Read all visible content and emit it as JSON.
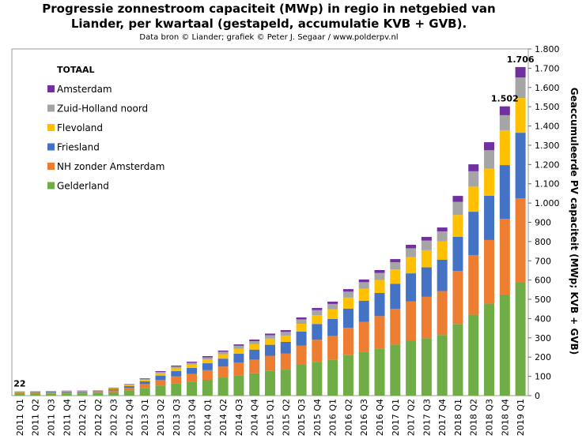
{
  "chart_data": {
    "type": "bar",
    "stacked": true,
    "title": [
      "Progressie zonnestroom capaciteit (MWp) in regio in netgebied van",
      "Liander, per kwartaal (gestapeld, accumulatie  KVB + GVB)."
    ],
    "subtitle": "Data bron © Liander; grafiek © Peter J. Segaar / www.polderpv.nl",
    "y_axis_label": "Geaccumuleerde  PV  capaciteit (MWp; KVB + GVB)",
    "legend_title": "TOTAAL",
    "categories": [
      "2011 Q1",
      "2011 Q2",
      "2011 Q3",
      "2011 Q4",
      "2012 Q1",
      "2012 Q2",
      "2012 Q3",
      "2012 Q4",
      "2013 Q1",
      "2013 Q2",
      "2013 Q3",
      "2013 Q4",
      "2014 Q1",
      "2014 Q2",
      "2014 Q3",
      "2014 Q4",
      "2015 Q1",
      "2015 Q2",
      "2015 Q3",
      "2015 Q4",
      "2016 Q1",
      "2016 Q2",
      "2016 Q3",
      "2016 Q4",
      "2017 Q1",
      "2017 Q2",
      "2017 Q3",
      "2017 Q4",
      "2018 Q1",
      "2018 Q2",
      "2018 Q3",
      "2018 Q4",
      "2019 Q1"
    ],
    "series": [
      {
        "name": "Gelderland",
        "color": "#70ad47",
        "values": [
          10,
          10,
          11,
          12,
          12,
          13,
          18,
          27,
          40,
          52,
          62,
          70,
          82,
          94,
          106,
          116,
          128,
          135,
          160,
          175,
          185,
          210,
          228,
          245,
          265,
          285,
          298,
          315,
          372,
          420,
          478,
          525,
          590
        ]
      },
      {
        "name": "NH zonder Amsterdam",
        "color": "#ed7d31",
        "values": [
          5,
          5,
          5,
          6,
          6,
          6,
          9,
          13,
          20,
          30,
          38,
          43,
          50,
          57,
          65,
          71,
          79,
          83,
          100,
          115,
          125,
          142,
          155,
          168,
          185,
          205,
          215,
          228,
          275,
          310,
          330,
          393,
          435
        ]
      },
      {
        "name": "Friesland",
        "color": "#4472c4",
        "values": [
          3,
          4,
          4,
          4,
          4,
          4,
          6,
          9,
          14,
          22,
          27,
          31,
          36,
          41,
          47,
          52,
          57,
          61,
          73,
          82,
          88,
          100,
          110,
          120,
          131,
          145,
          153,
          163,
          178,
          225,
          230,
          279,
          340
        ]
      },
      {
        "name": "Flevoland",
        "color": "#ffc000",
        "values": [
          2,
          2,
          2,
          2,
          3,
          3,
          4,
          6,
          8,
          12,
          15,
          17,
          20,
          23,
          26,
          28,
          32,
          33,
          40,
          46,
          50,
          57,
          62,
          68,
          74,
          84,
          89,
          95,
          113,
          130,
          140,
          181,
          180
        ]
      },
      {
        "name": "Zuid-Holland noord",
        "color": "#a5a5a5",
        "values": [
          1,
          1,
          1,
          1,
          1,
          1,
          2,
          3,
          5,
          7,
          9,
          10,
          11,
          13,
          15,
          16,
          18,
          19,
          23,
          26,
          28,
          31,
          34,
          36,
          38,
          46,
          50,
          52,
          68,
          80,
          96,
          78,
          107
        ]
      },
      {
        "name": "Amsterdam",
        "color": "#7030a0",
        "values": [
          1,
          1,
          1,
          1,
          1,
          1,
          2,
          2,
          3,
          4,
          5,
          5,
          6,
          6,
          7,
          8,
          8,
          9,
          10,
          11,
          12,
          13,
          14,
          15,
          16,
          18,
          19,
          20,
          31,
          36,
          42,
          46,
          54
        ]
      }
    ],
    "annotations": [
      {
        "category": "2011 Q1",
        "value": 22,
        "label": "22"
      },
      {
        "category": "2018 Q4",
        "value": 1502,
        "label": "1.502"
      },
      {
        "category": "2019 Q1",
        "value": 1706,
        "label": "1.706"
      }
    ],
    "ylim": [
      0,
      1800
    ],
    "yticks": [
      0,
      100,
      200,
      300,
      400,
      500,
      600,
      700,
      800,
      900,
      {
        "value": 1000,
        "label": "1.000"
      },
      {
        "value": 1100,
        "label": "1.100"
      },
      {
        "value": 1200,
        "label": "1.200"
      },
      {
        "value": 1300,
        "label": "1.300"
      },
      {
        "value": 1400,
        "label": "1.400"
      },
      {
        "value": 1500,
        "label": "1.500"
      },
      {
        "value": 1600,
        "label": "1.600"
      },
      {
        "value": 1700,
        "label": "1.700"
      },
      {
        "value": 1800,
        "label": "1.800"
      }
    ],
    "grid": false,
    "y_axis_side": "right"
  }
}
